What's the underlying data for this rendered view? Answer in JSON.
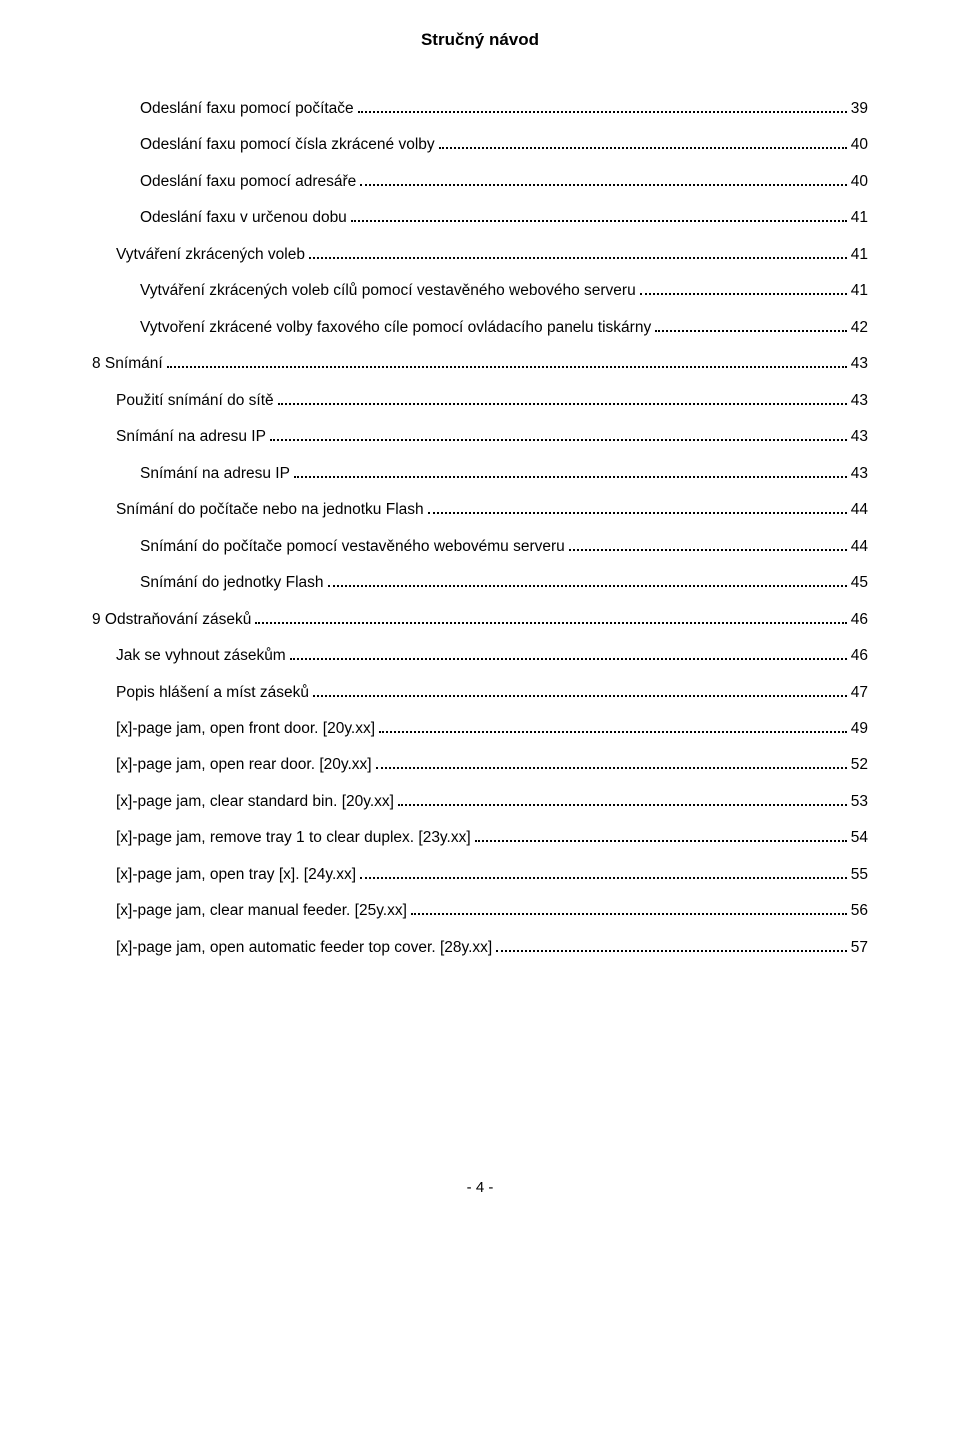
{
  "header_title": "Stručný návod",
  "page_footer": "- 4 -",
  "toc": [
    {
      "level": 2,
      "label": "Odeslání faxu pomocí počítače",
      "page": "39"
    },
    {
      "level": 2,
      "label": "Odeslání faxu pomocí čísla zkrácené volby",
      "page": "40"
    },
    {
      "level": 2,
      "label": "Odeslání faxu pomocí adresáře",
      "page": "40"
    },
    {
      "level": 2,
      "label": "Odeslání faxu v určenou dobu",
      "page": "41"
    },
    {
      "level": 1,
      "label": "Vytváření zkrácených voleb",
      "page": "41"
    },
    {
      "level": 2,
      "label": "Vytváření zkrácených voleb cílů pomocí vestavěného webového serveru",
      "page": "41"
    },
    {
      "level": 2,
      "label": "Vytvoření zkrácené volby faxového cíle pomocí ovládacího panelu tiskárny",
      "page": "42"
    },
    {
      "level": 0,
      "label": "8 Snímání",
      "page": "43"
    },
    {
      "level": 1,
      "label": "Použití snímání do sítě",
      "page": "43"
    },
    {
      "level": 1,
      "label": "Snímání na adresu IP",
      "page": "43"
    },
    {
      "level": 2,
      "label": "Snímání na adresu IP",
      "page": "43"
    },
    {
      "level": 1,
      "label": "Snímání do počítače nebo na jednotku Flash",
      "page": "44"
    },
    {
      "level": 2,
      "label": "Snímání do počítače pomocí vestavěného webovému serveru",
      "page": "44"
    },
    {
      "level": 2,
      "label": "Snímání do jednotky Flash",
      "page": "45"
    },
    {
      "level": 0,
      "label": "9 Odstraňování záseků",
      "page": "46"
    },
    {
      "level": 1,
      "label": "Jak se vyhnout zásekům",
      "page": "46"
    },
    {
      "level": 1,
      "label": "Popis hlášení a míst záseků",
      "page": "47"
    },
    {
      "level": 1,
      "label": "[x]-page jam, open front door. [20y.xx]",
      "page": "49"
    },
    {
      "level": 1,
      "label": "[x]-page jam, open rear door. [20y.xx]",
      "page": "52"
    },
    {
      "level": 1,
      "label": "[x]-page jam, clear standard bin. [20y.xx]",
      "page": "53"
    },
    {
      "level": 1,
      "label": "[x]-page jam, remove tray 1 to clear duplex. [23y.xx]",
      "page": "54"
    },
    {
      "level": 1,
      "label": "[x]-page jam, open tray [x]. [24y.xx]",
      "page": "55"
    },
    {
      "level": 1,
      "label": "[x]-page jam, clear manual feeder. [25y.xx]",
      "page": "56"
    },
    {
      "level": 1,
      "label": "[x]-page jam, open automatic feeder top cover. [28y.xx]",
      "page": "57"
    }
  ]
}
